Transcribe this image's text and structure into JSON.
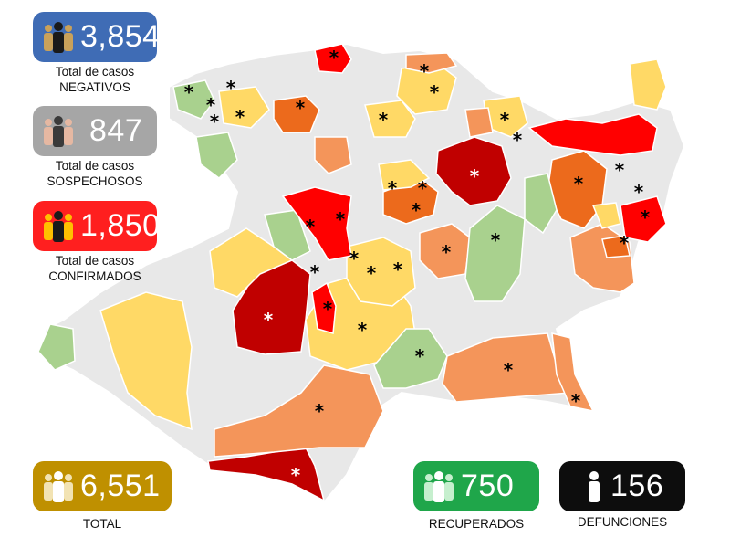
{
  "stats": {
    "negativos": {
      "value": "3,854",
      "line1": "Total de casos",
      "line2": "NEGATIVOS",
      "color": "#3f6cb5"
    },
    "sospechosos": {
      "value": "847",
      "line1": "Total de casos",
      "line2": "SOSPECHOSOS",
      "color": "#a6a6a6"
    },
    "confirmados": {
      "value": "1,850",
      "line1": "Total de casos",
      "line2": "CONFIRMADOS",
      "color": "#ff1f1f"
    },
    "total": {
      "value": "6,551",
      "label": "TOTAL",
      "color": "#bf9000"
    },
    "recuperados": {
      "value": "750",
      "label": "RECUPERADOS",
      "color": "#1fa64a"
    },
    "defunciones": {
      "value": "156",
      "label": "DEFUNCIONES",
      "color": "#0d0d0d"
    }
  },
  "map": {
    "marker_symbol": "*",
    "colors": {
      "none": "#e8e8e8",
      "green": "#a9d18e",
      "yellow": "#ffd966",
      "orange": "#f4955a",
      "dark_orange": "#ec6a1c",
      "red": "#ff0000",
      "dark_red": "#c00000"
    }
  }
}
